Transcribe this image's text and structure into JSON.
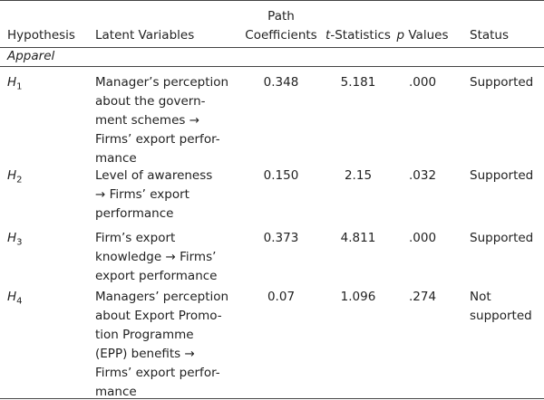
{
  "table": {
    "columns": [
      {
        "lines": [
          "Hypothesis"
        ]
      },
      {
        "lines": [
          "Latent Variables"
        ]
      },
      {
        "lines": [
          "Path",
          "Coefficients"
        ]
      },
      {
        "lines": [
          {
            "italic": "t",
            "rest": "-Statistics"
          }
        ]
      },
      {
        "lines": [
          {
            "italic": "p",
            "rest": " Values"
          }
        ]
      },
      {
        "lines": [
          "Status"
        ]
      }
    ],
    "section": "Apparel",
    "rows": [
      {
        "hypothesis": {
          "symbol": "H",
          "index": "1"
        },
        "variables": [
          "Manager’s perception",
          "about the govern-",
          "ment schemes →",
          "Firms’ export perfor-",
          "mance"
        ],
        "path": "0.348",
        "t": "5.181",
        "p": ".000",
        "status": [
          "Supported"
        ]
      },
      {
        "hypothesis": {
          "symbol": "H",
          "index": "2"
        },
        "variables": [
          "Level of awareness",
          "→ Firms’ export",
          "performance"
        ],
        "path": "0.150",
        "t": "2.15",
        "p": ".032",
        "status": [
          "Supported"
        ]
      },
      {
        "hypothesis": {
          "symbol": "H",
          "index": "3"
        },
        "variables": [
          "Firm’s export",
          "knowledge → Firms’",
          "export performance"
        ],
        "path": "0.373",
        "t": "4.811",
        "p": ".000",
        "status": [
          "Supported"
        ]
      },
      {
        "hypothesis": {
          "symbol": "H",
          "index": "4"
        },
        "variables": [
          "Managers’ perception",
          "about Export Promo-",
          "tion Programme",
          "(EPP) benefits →",
          "Firms’ export perfor-",
          "mance"
        ],
        "path": "0.07",
        "t": "1.096",
        "p": ".274",
        "status": [
          "Not",
          "supported"
        ]
      }
    ]
  }
}
